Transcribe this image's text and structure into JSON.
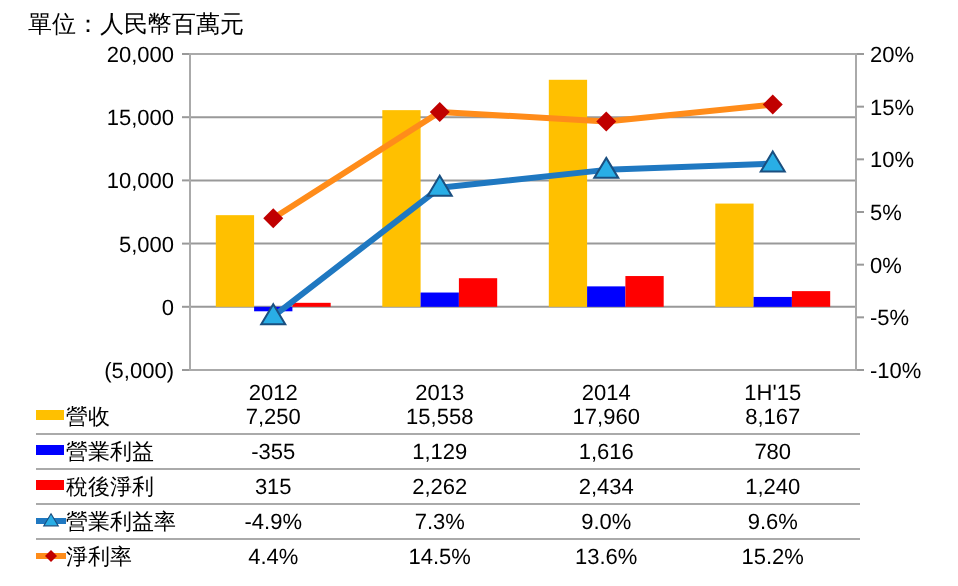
{
  "chart_data": {
    "type": "bar",
    "title": "單位：人民幣百萬元",
    "categories": [
      "2012",
      "2013",
      "2014",
      "1H'15"
    ],
    "series": [
      {
        "name": "營收",
        "color": "#ffc000",
        "values": [
          7250,
          15558,
          17960,
          8167
        ],
        "value_labels": [
          "7,250",
          "15,558",
          "17,960",
          "8,167"
        ]
      },
      {
        "name": "營業利益",
        "color": "#0000ff",
        "values": [
          -355,
          1129,
          1616,
          780
        ],
        "value_labels": [
          "-355",
          "1,129",
          "1,616",
          "780"
        ]
      },
      {
        "name": "稅後淨利",
        "color": "#ff0000",
        "values": [
          315,
          2262,
          2434,
          1240
        ],
        "value_labels": [
          "315",
          "2,262",
          "2,434",
          "1,240"
        ]
      },
      {
        "name": "營業利益率",
        "type": "line",
        "axis": "y2",
        "marker": "triangle",
        "color": "#1f78c1",
        "values": [
          -4.9,
          7.3,
          9.0,
          9.6
        ],
        "value_labels": [
          "-4.9%",
          "7.3%",
          "9.0%",
          "9.6%"
        ]
      },
      {
        "name": "淨利率",
        "type": "line",
        "axis": "y2",
        "marker": "diamond",
        "color": "#ff8c1a",
        "values": [
          4.4,
          14.5,
          13.6,
          15.2
        ],
        "value_labels": [
          "4.4%",
          "14.5%",
          "13.6%",
          "15.2%"
        ]
      }
    ],
    "ylim": [
      -5000,
      20000
    ],
    "yticks": [
      {
        "value": -5000,
        "label": "(5,000)"
      },
      {
        "value": 0,
        "label": "0"
      },
      {
        "value": 5000,
        "label": "5,000"
      },
      {
        "value": 10000,
        "label": "10,000"
      },
      {
        "value": 15000,
        "label": "15,000"
      },
      {
        "value": 20000,
        "label": "20,000"
      }
    ],
    "y2lim": [
      -10,
      20
    ],
    "y2ticks": [
      {
        "value": -10,
        "label": "-10%"
      },
      {
        "value": -5,
        "label": "-5%"
      },
      {
        "value": 0,
        "label": "0%"
      },
      {
        "value": 5,
        "label": "5%"
      },
      {
        "value": 10,
        "label": "10%"
      },
      {
        "value": 15,
        "label": "15%"
      },
      {
        "value": 20,
        "label": "20%"
      }
    ],
    "grid": "y",
    "legend": "bottom"
  }
}
